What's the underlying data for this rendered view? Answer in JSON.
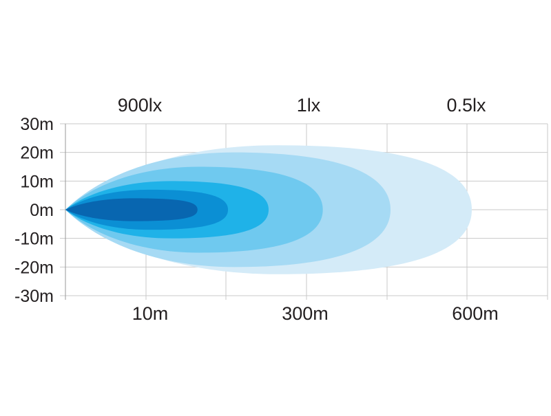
{
  "chart_data": {
    "type": "area",
    "title": "",
    "xlabel": "",
    "ylabel": "",
    "y_ticks": [
      "30m",
      "20m",
      "10m",
      "0m",
      "-10m",
      "-20m",
      "-30m"
    ],
    "x_tick_labels": [
      "10m",
      "300m",
      "600m"
    ],
    "lux_labels": [
      "900lx",
      "1lx",
      "0.5lx"
    ],
    "grid": true,
    "beam_profile": [
      {
        "level": 1,
        "color": "#d4ebf8",
        "reach_m": 600,
        "half_width_m": 22.5
      },
      {
        "level": 2,
        "color": "#a6daf4",
        "reach_m": 480,
        "half_width_m": 20
      },
      {
        "level": 3,
        "color": "#6fc9ef",
        "reach_m": 380,
        "half_width_m": 15
      },
      {
        "level": 4,
        "color": "#1fb2e8",
        "reach_m": 300,
        "half_width_m": 10
      },
      {
        "level": 5,
        "color": "#0b8fd4",
        "reach_m": 240,
        "half_width_m": 7
      },
      {
        "level": 6,
        "color": "#0866b0",
        "reach_m": 195,
        "half_width_m": 4
      }
    ]
  }
}
